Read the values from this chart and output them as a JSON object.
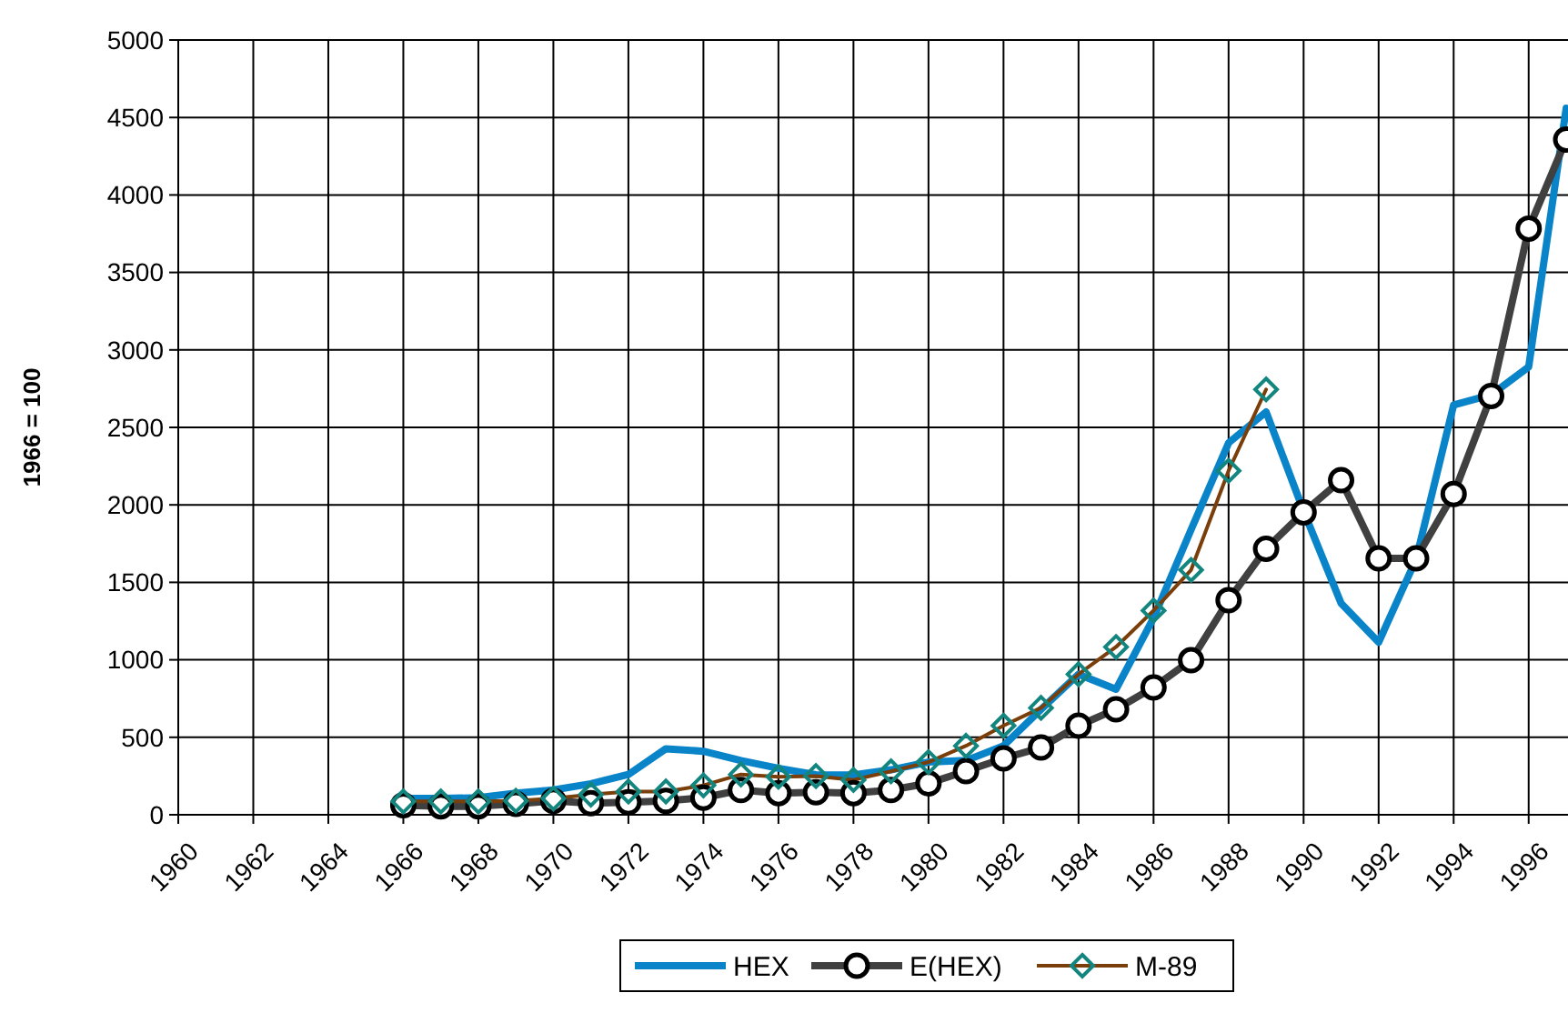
{
  "chart_data": {
    "type": "line",
    "ylabel": "1966 = 100",
    "x": [
      1966,
      1967,
      1968,
      1969,
      1970,
      1971,
      1972,
      1973,
      1974,
      1975,
      1976,
      1977,
      1978,
      1979,
      1980,
      1981,
      1982,
      1983,
      1984,
      1985,
      1986,
      1987,
      1988,
      1989,
      1990,
      1991,
      1992,
      1993,
      1994,
      1995,
      1996,
      1997
    ],
    "series": [
      {
        "name": "HEX",
        "color": "#0a84c8",
        "marker": "none",
        "values": [
          105,
          105,
          110,
          140,
          160,
          200,
          260,
          426,
          410,
          350,
          300,
          258,
          257,
          290,
          340,
          350,
          445,
          680,
          907,
          810,
          1270,
          1840,
          2400,
          2600,
          1960,
          1365,
          1113,
          1650,
          2645,
          2710,
          2890,
          4560
        ]
      },
      {
        "name": "E(HEX)",
        "color": "#404040",
        "marker": "circle",
        "values": [
          62,
          55,
          55,
          70,
          90,
          75,
          80,
          90,
          110,
          160,
          140,
          145,
          140,
          160,
          203,
          282,
          364,
          434,
          575,
          681,
          822,
          997,
          1385,
          1717,
          1952,
          2160,
          1655,
          1655,
          2070,
          2703,
          3783,
          4358
        ]
      },
      {
        "name": "M-89",
        "color": "#7a3e0a",
        "marker": "diamond",
        "values": [
          86,
          86,
          86,
          90,
          105,
          130,
          150,
          150,
          190,
          260,
          245,
          250,
          225,
          280,
          340,
          445,
          575,
          690,
          907,
          1083,
          1318,
          1580,
          2220,
          2745,
          null,
          null,
          null,
          null,
          null,
          null,
          null,
          null
        ]
      }
    ],
    "xlim": [
      1960,
      1997
    ],
    "xticks": [
      1960,
      1962,
      1964,
      1966,
      1968,
      1970,
      1972,
      1974,
      1976,
      1978,
      1980,
      1982,
      1984,
      1986,
      1988,
      1990,
      1992,
      1994,
      1996
    ],
    "ylim": [
      0,
      5000
    ],
    "yticks": [
      0,
      500,
      1000,
      1500,
      2000,
      2500,
      3000,
      3500,
      4000,
      4500,
      5000
    ],
    "grid": true,
    "legend": "bottom"
  }
}
